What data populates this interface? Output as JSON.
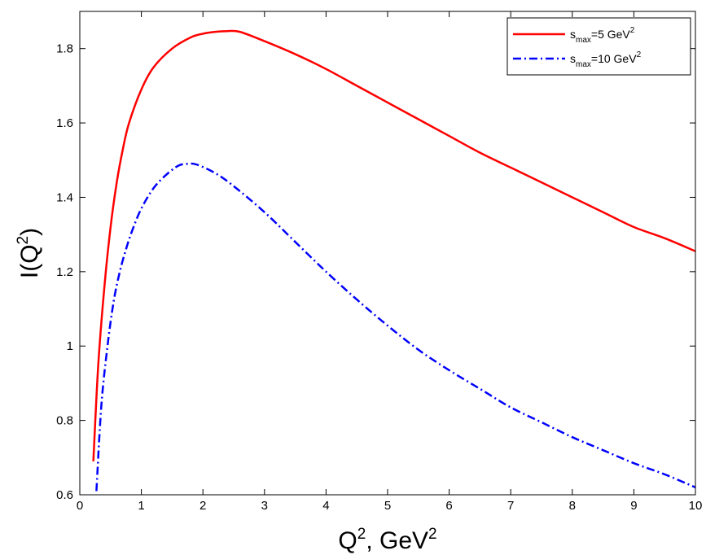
{
  "chart_data": {
    "type": "line",
    "xlabel": {
      "base": "Q",
      "sup1": "2",
      "mid": ", GeV",
      "sup2": "2"
    },
    "ylabel": {
      "base": "I(Q",
      "sup": "2",
      "tail": ")"
    },
    "xlim": [
      0,
      10
    ],
    "ylim": [
      0.6,
      1.9
    ],
    "xticks": [
      0,
      1,
      2,
      3,
      4,
      5,
      6,
      7,
      8,
      9,
      10
    ],
    "xtick_labels": [
      "0",
      "1",
      "2",
      "3",
      "4",
      "5",
      "6",
      "7",
      "8",
      "9",
      "10"
    ],
    "yticks": [
      0.6,
      0.8,
      1.0,
      1.2,
      1.4,
      1.6,
      1.8
    ],
    "ytick_labels": [
      "0.6",
      "0.8",
      "1",
      "1.2",
      "1.4",
      "1.6",
      "1.8"
    ],
    "grid": false,
    "legend_position": "top-right",
    "series": [
      {
        "legend": {
          "base": "s",
          "sub": "max",
          "rest": "=5 GeV",
          "sup": "2"
        },
        "color": "#ff0000",
        "style": "solid",
        "x": [
          0.22,
          0.3,
          0.4,
          0.5,
          0.6,
          0.7,
          0.8,
          1.0,
          1.2,
          1.5,
          1.8,
          2.0,
          2.2,
          2.4,
          2.6,
          3.0,
          3.5,
          4.0,
          4.5,
          5.0,
          5.5,
          6.0,
          6.5,
          7.0,
          7.5,
          8.0,
          8.5,
          9.0,
          9.5,
          10.0
        ],
        "y": [
          0.69,
          0.95,
          1.16,
          1.32,
          1.44,
          1.53,
          1.6,
          1.69,
          1.75,
          1.8,
          1.83,
          1.84,
          1.845,
          1.847,
          1.845,
          1.82,
          1.785,
          1.745,
          1.7,
          1.655,
          1.61,
          1.565,
          1.52,
          1.48,
          1.44,
          1.4,
          1.36,
          1.32,
          1.29,
          1.255
        ]
      },
      {
        "legend": {
          "base": "s",
          "sub": "max",
          "rest": "=10 GeV",
          "sup": "2"
        },
        "color": "#0000ff",
        "style": "dash-dot",
        "x": [
          0.27,
          0.35,
          0.45,
          0.55,
          0.65,
          0.75,
          0.85,
          1.0,
          1.2,
          1.4,
          1.6,
          1.75,
          1.9,
          2.2,
          2.5,
          3.0,
          3.5,
          4.0,
          4.5,
          5.0,
          5.5,
          6.0,
          6.5,
          7.0,
          7.5,
          8.0,
          8.5,
          9.0,
          9.5,
          10.0
        ],
        "y": [
          0.61,
          0.84,
          1.0,
          1.12,
          1.2,
          1.26,
          1.31,
          1.37,
          1.425,
          1.46,
          1.485,
          1.49,
          1.488,
          1.465,
          1.43,
          1.36,
          1.28,
          1.2,
          1.125,
          1.055,
          0.99,
          0.935,
          0.885,
          0.835,
          0.795,
          0.755,
          0.72,
          0.685,
          0.655,
          0.62
        ]
      }
    ]
  }
}
